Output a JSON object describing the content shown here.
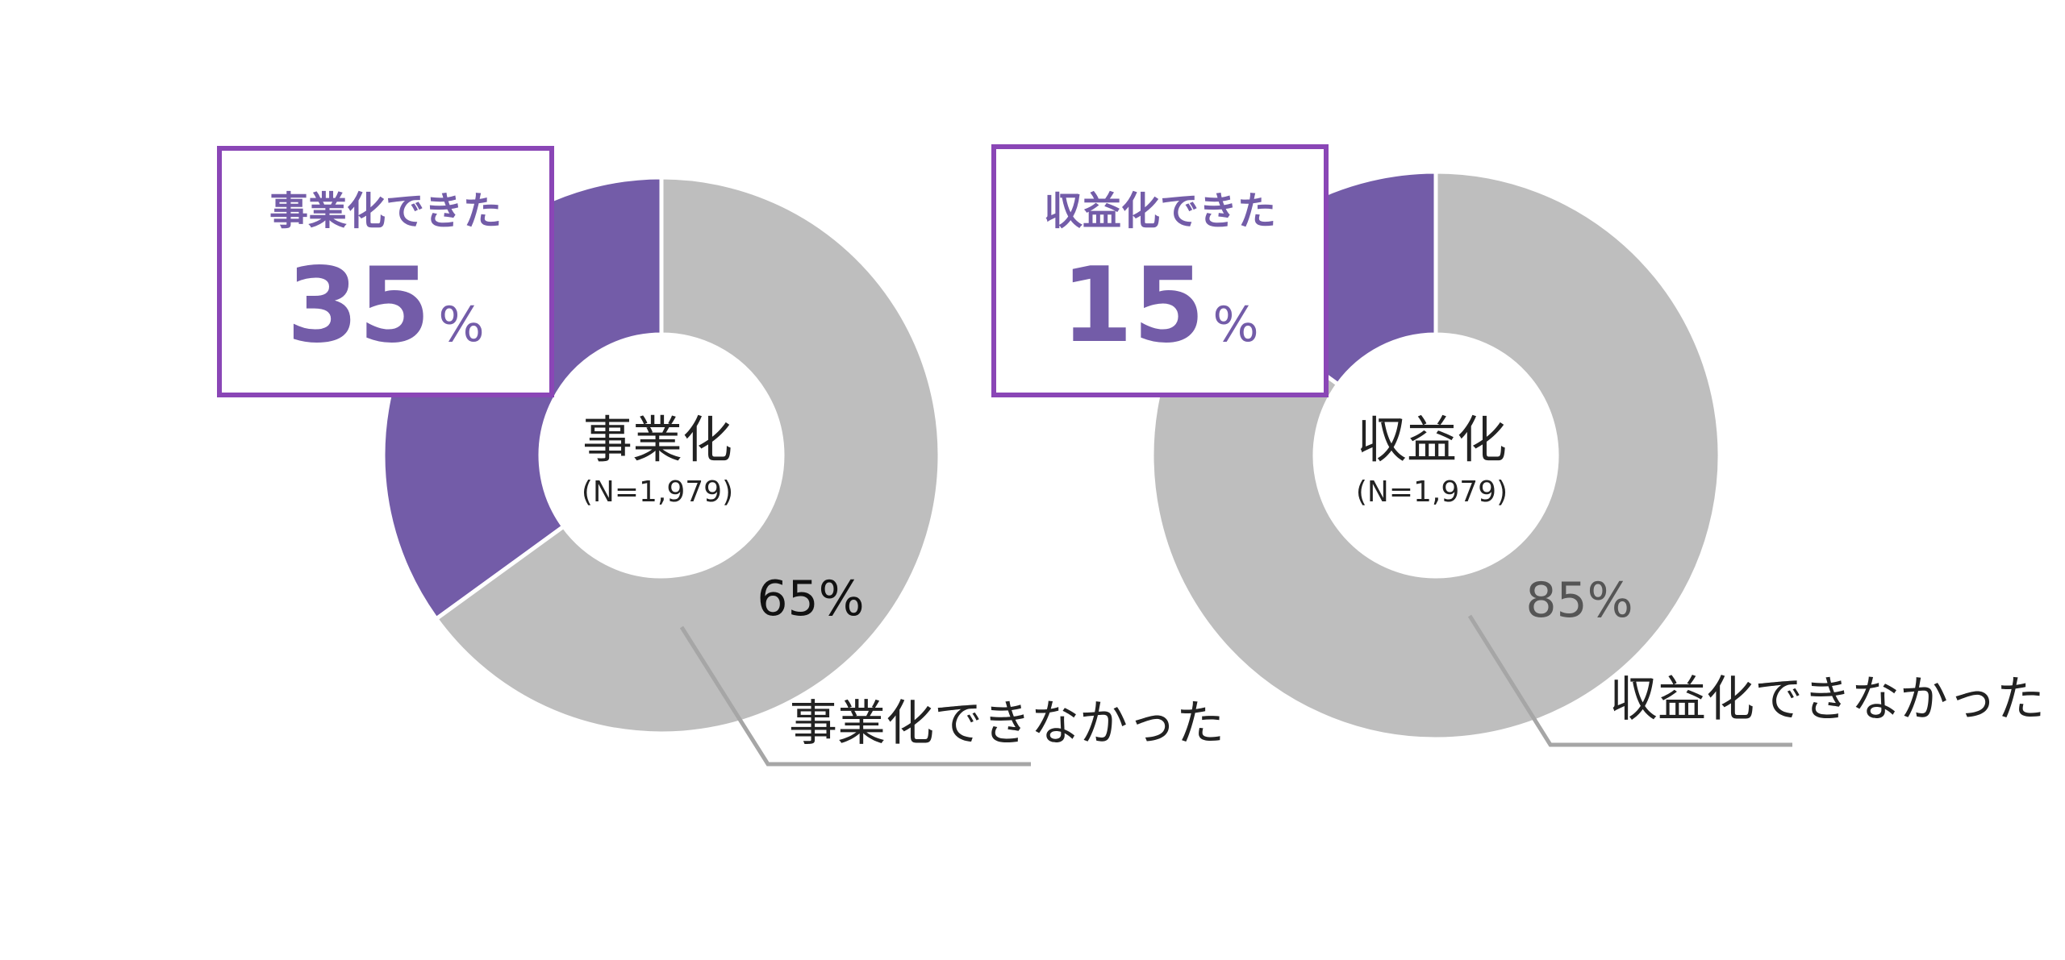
{
  "colors": {
    "accent": "#735CA8",
    "callout_border": "#8A46B6",
    "rest": "#BEBEBE",
    "leader": "#A6A6A6"
  },
  "chart_data": [
    {
      "type": "pie",
      "variant": "donut",
      "center_label": "事業化",
      "n_label": "(N=1,979)",
      "slices": [
        {
          "label": "事業化できた",
          "value": 35
        },
        {
          "label": "事業化できなかった",
          "value": 65
        }
      ],
      "highlight": {
        "title": "事業化できた",
        "value": "35",
        "unit": "%"
      },
      "rest_label": {
        "value": "65%",
        "text": "事業化できなかった"
      }
    },
    {
      "type": "pie",
      "variant": "donut",
      "center_label": "収益化",
      "n_label": "(N=1,979)",
      "slices": [
        {
          "label": "収益化できた",
          "value": 15
        },
        {
          "label": "収益化できなかった",
          "value": 85
        }
      ],
      "highlight": {
        "title": "収益化できた",
        "value": "15",
        "unit": "%"
      },
      "rest_label": {
        "value": "85%",
        "text": "収益化できなかった"
      }
    }
  ]
}
